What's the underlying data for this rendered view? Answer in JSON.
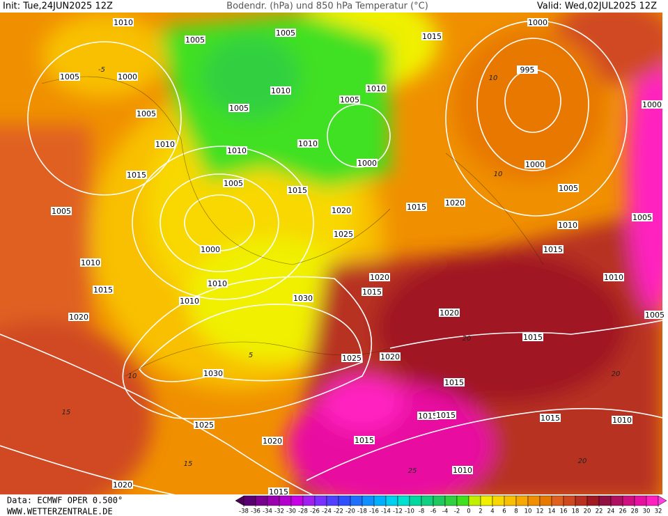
{
  "header": {
    "init": "Init: Tue,24JUN2025 12Z",
    "title": "Bodendr. (hPa) und 850 hPa Temperatur (°C)",
    "valid": "Valid: Wed,02JUL2025 12Z"
  },
  "isobar_labels": [
    1010,
    1005,
    1005,
    1015,
    1000,
    1005,
    1000,
    995,
    1010,
    1010,
    1005,
    1005,
    1005,
    1000,
    1010,
    1010,
    1010,
    1000,
    1000,
    1015,
    1005,
    1015,
    1005,
    1005,
    1020,
    1015,
    1020,
    1005,
    1010,
    1025,
    1000,
    1015,
    1010,
    1010,
    1020,
    1010,
    1015,
    1015,
    1010,
    1030,
    1020,
    1020,
    1005,
    1015,
    1025,
    1020,
    1030,
    1015,
    1015,
    1015,
    1015,
    1010,
    1025,
    1020,
    1015,
    1010,
    1020,
    1015
  ],
  "temperature_labels": [
    -5,
    10,
    10,
    10,
    5,
    15,
    15,
    20,
    20,
    25,
    20
  ],
  "colorbar": {
    "ticks": [
      -38,
      -36,
      -34,
      -32,
      -30,
      -28,
      -26,
      -24,
      -22,
      -20,
      -18,
      -16,
      -14,
      -12,
      -10,
      -8,
      -6,
      -4,
      -2,
      0,
      2,
      4,
      6,
      8,
      10,
      12,
      14,
      16,
      18,
      20,
      22,
      24,
      26,
      28,
      30,
      32
    ],
    "colors": [
      "#4b0055",
      "#5a0070",
      "#7a0090",
      "#9a00b0",
      "#b400cc",
      "#c800e6",
      "#a020f0",
      "#7a30ff",
      "#5040ff",
      "#3050ff",
      "#2070ff",
      "#1090ff",
      "#00b0ff",
      "#00d0f0",
      "#00e0d0",
      "#00d8a0",
      "#10d080",
      "#20c860",
      "#30d040",
      "#40e020",
      "#c0f000",
      "#f0f000",
      "#f8d800",
      "#f8c000",
      "#f8a800",
      "#f09000",
      "#e87800",
      "#e06020",
      "#d04820",
      "#b83020",
      "#a01820",
      "#901040",
      "#b01060",
      "#d01080",
      "#e810a0",
      "#ff20c0",
      "#ff40e0"
    ]
  },
  "footer": {
    "source": "Data: ECMWF OPER 0.500°",
    "url": "WWW.WETTERZENTRALE.DE"
  }
}
